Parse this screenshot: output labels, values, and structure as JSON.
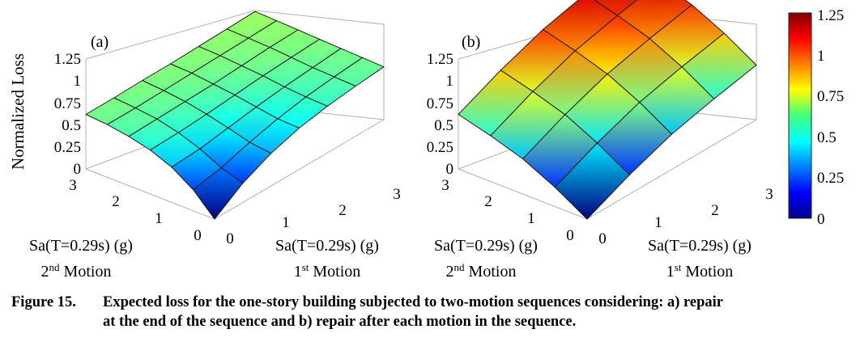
{
  "chart_data": [
    {
      "type": "surface",
      "panel_label": "(a)",
      "zlabel": "Normalized Loss",
      "zticks": [
        "0",
        "0.25",
        "0.5",
        "0.75",
        "1",
        "1.25"
      ],
      "zlim": [
        0,
        1.25
      ],
      "x_axis": {
        "label_line1": "Sa(T=0.29s) (g)",
        "label_line2_base": "1",
        "label_line2_sup": "st",
        "label_line2_rest": " Motion",
        "ticks": [
          "0",
          "1",
          "2",
          "3"
        ],
        "range": [
          0,
          3
        ]
      },
      "y_axis": {
        "label_line1": "Sa(T=0.29s) (g)",
        "label_line2_base": "2",
        "label_line2_sup": "nd",
        "label_line2_rest": " Motion",
        "ticks": [
          "0",
          "1",
          "2",
          "3"
        ],
        "range": [
          0,
          3
        ]
      },
      "grid_values": [
        0,
        0.5,
        1,
        1.5,
        2,
        2.5,
        3
      ],
      "surface_rows_by_2nd_motion": [
        [
          0.0,
          0.22,
          0.37,
          0.47,
          0.53,
          0.57,
          0.6
        ],
        [
          0.24,
          0.3,
          0.4,
          0.48,
          0.54,
          0.58,
          0.61
        ],
        [
          0.4,
          0.42,
          0.47,
          0.52,
          0.56,
          0.59,
          0.62
        ],
        [
          0.5,
          0.51,
          0.53,
          0.56,
          0.59,
          0.61,
          0.63
        ],
        [
          0.56,
          0.57,
          0.58,
          0.59,
          0.61,
          0.63,
          0.64
        ],
        [
          0.6,
          0.6,
          0.61,
          0.62,
          0.63,
          0.64,
          0.65
        ],
        [
          0.62,
          0.62,
          0.63,
          0.63,
          0.64,
          0.65,
          0.66
        ]
      ]
    },
    {
      "type": "surface",
      "panel_label": "(b)",
      "zticks": [
        "0",
        "0.25",
        "0.5",
        "0.75",
        "1",
        "1.25"
      ],
      "zlim": [
        0,
        1.25
      ],
      "x_axis": {
        "label_line1": "Sa(T=0.29s) (g)",
        "label_line2_base": "1",
        "label_line2_sup": "st",
        "label_line2_rest": " Motion",
        "ticks": [
          "0",
          "1",
          "2",
          "3"
        ],
        "range": [
          0,
          3
        ]
      },
      "y_axis": {
        "label_line1": "Sa(T=0.29s) (g)",
        "label_line2_base": "2",
        "label_line2_sup": "nd",
        "label_line2_rest": " Motion",
        "ticks": [
          "0",
          "1",
          "2",
          "3"
        ],
        "range": [
          0,
          3
        ]
      },
      "grid_values": [
        0,
        0.75,
        1.5,
        2.25,
        3
      ],
      "surface_rows_by_2nd_motion": [
        [
          0.0,
          0.22,
          0.4,
          0.52,
          0.62
        ],
        [
          0.22,
          0.44,
          0.62,
          0.74,
          0.84
        ],
        [
          0.4,
          0.62,
          0.8,
          0.92,
          1.02
        ],
        [
          0.52,
          0.74,
          0.92,
          1.04,
          1.14
        ],
        [
          0.62,
          0.84,
          1.02,
          1.14,
          1.24
        ]
      ]
    }
  ],
  "colorbar": {
    "ticks": [
      "0",
      "0.25",
      "0.5",
      "0.75",
      "1",
      "1.25"
    ],
    "range": [
      0,
      1.25
    ],
    "colormap": "jet"
  },
  "caption": {
    "number": "Figure 15.",
    "line1": "Expected loss for the one-story building subjected to two-motion sequences considering: a) repair",
    "line2": "at the end of the sequence and b) repair after each motion in the sequence."
  }
}
